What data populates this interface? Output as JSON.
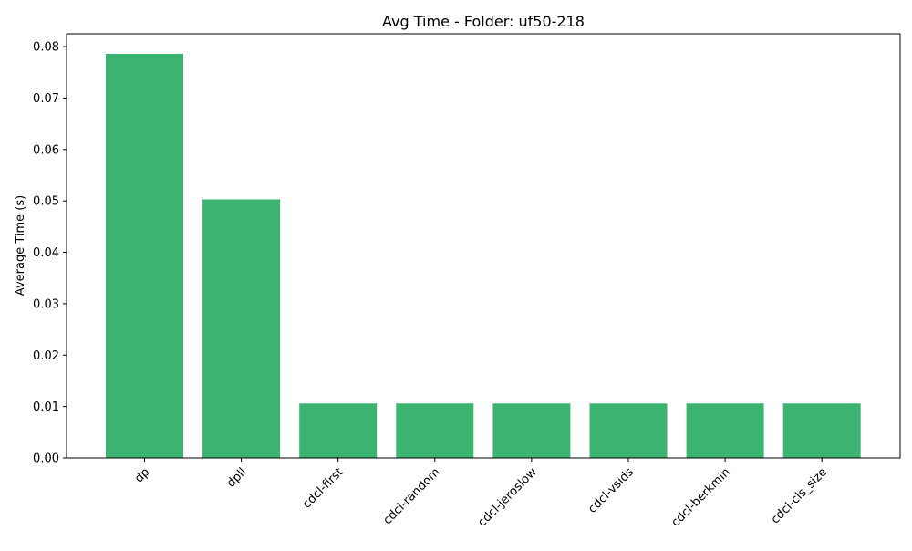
{
  "chart_data": {
    "type": "bar",
    "title": "Avg Time - Folder: uf50-218",
    "xlabel": "",
    "ylabel": "Average Time (s)",
    "categories": [
      "dp",
      "dpll",
      "cdcl-first",
      "cdcl-random",
      "cdcl-jeroslow",
      "cdcl-vsids",
      "cdcl-berkmin",
      "cdcl-cls_size"
    ],
    "values": [
      0.0786,
      0.0503,
      0.0106,
      0.0106,
      0.0106,
      0.0106,
      0.0106,
      0.0106
    ],
    "ylim": [
      0,
      0.0825
    ],
    "yticks": [
      "0.00",
      "0.01",
      "0.02",
      "0.03",
      "0.04",
      "0.05",
      "0.06",
      "0.07",
      "0.08"
    ],
    "bar_color": "#3cb371",
    "grid": false,
    "legend": "none"
  }
}
